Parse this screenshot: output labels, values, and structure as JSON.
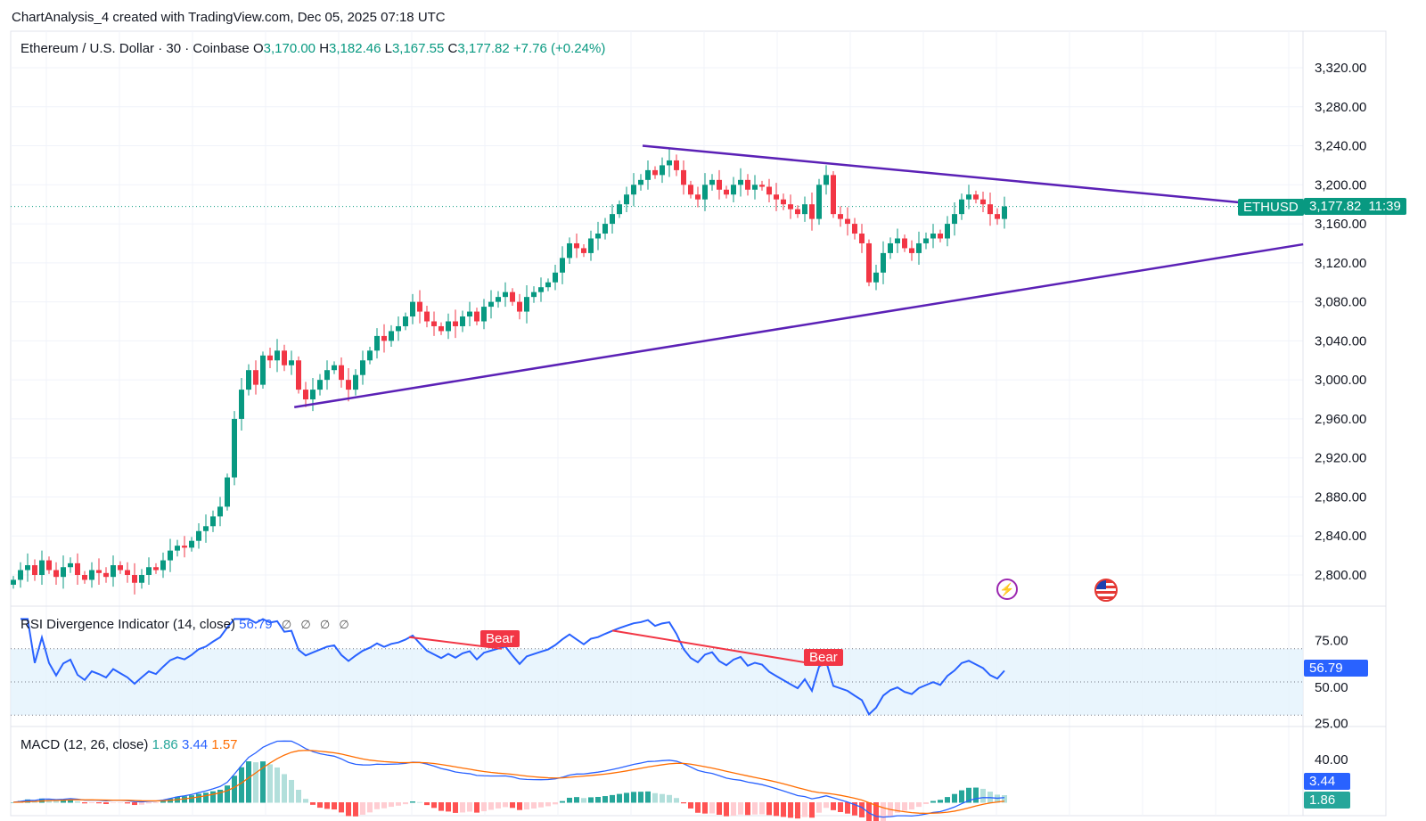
{
  "header": {
    "caption": "ChartAnalysis_4 created with TradingView.com, Dec 05, 2025 07:18 UTC"
  },
  "legend": {
    "symbol": "Ethereum / U.S. Dollar · 30 · Coinbase",
    "open_label": "O",
    "open": "3,170.00",
    "high_label": "H",
    "high": "3,182.46",
    "low_label": "L",
    "low": "3,167.55",
    "close_label": "C",
    "close": "3,177.82",
    "change": "+7.76 (+0.24%)"
  },
  "price_tag": {
    "ticker": "ETHUSD",
    "price": "3,177.82",
    "countdown": "11:39"
  },
  "rsi": {
    "title": "RSI Divergence Indicator (14, close)",
    "value": "56.79",
    "placeholders": [
      "∅",
      "∅",
      "∅",
      "∅"
    ],
    "axis": [
      "75.00",
      "50.00",
      "25.00"
    ],
    "labels": [
      "Bear",
      "Bear"
    ]
  },
  "macd": {
    "title": "MACD (12, 26, close)",
    "hist": "1.86",
    "macd": "3.44",
    "signal": "1.57",
    "axis": [
      "40.00"
    ]
  },
  "colors": {
    "up": "#089981",
    "down": "#f23645",
    "trendline": "#5b21b6",
    "rsi": "#2962ff",
    "bear": "#f23645",
    "macd": "#2962ff",
    "signal": "#ff6d00"
  },
  "icons": [
    "lightning-event-icon",
    "us-flag-event-icon"
  ],
  "chart_data": {
    "type": "candlestick",
    "title": "Ethereum / U.S. Dollar · 30 · Coinbase",
    "interval": "30",
    "ylim": [
      2780,
      3340
    ],
    "y_ticks": [
      "3,320.00",
      "3,280.00",
      "3,240.00",
      "3,200.00",
      "3,160.00",
      "3,120.00",
      "3,080.00",
      "3,040.00",
      "3,000.00",
      "2,960.00",
      "2,920.00",
      "2,880.00",
      "2,840.00",
      "2,800.00"
    ],
    "y_tick_values": [
      3320,
      3280,
      3240,
      3200,
      3160,
      3120,
      3080,
      3040,
      3000,
      2960,
      2920,
      2880,
      2840,
      2800
    ],
    "grid": true,
    "closes": [
      2795,
      2805,
      2810,
      2800,
      2815,
      2805,
      2798,
      2808,
      2812,
      2800,
      2795,
      2805,
      2802,
      2798,
      2810,
      2805,
      2800,
      2792,
      2800,
      2808,
      2805,
      2815,
      2825,
      2830,
      2828,
      2835,
      2845,
      2850,
      2860,
      2870,
      2900,
      2960,
      2990,
      3010,
      2995,
      3025,
      3020,
      3030,
      3015,
      3020,
      2990,
      2980,
      2990,
      3000,
      3010,
      3015,
      3000,
      2990,
      3005,
      3020,
      3030,
      3045,
      3040,
      3050,
      3055,
      3065,
      3080,
      3070,
      3060,
      3055,
      3050,
      3060,
      3055,
      3065,
      3070,
      3060,
      3075,
      3080,
      3085,
      3090,
      3080,
      3070,
      3085,
      3090,
      3095,
      3100,
      3110,
      3125,
      3140,
      3135,
      3130,
      3145,
      3150,
      3160,
      3170,
      3180,
      3190,
      3200,
      3205,
      3215,
      3210,
      3220,
      3225,
      3215,
      3200,
      3190,
      3185,
      3200,
      3205,
      3195,
      3190,
      3200,
      3205,
      3195,
      3200,
      3198,
      3190,
      3185,
      3180,
      3175,
      3170,
      3180,
      3165,
      3200,
      3210,
      3170,
      3165,
      3160,
      3150,
      3140,
      3100,
      3110,
      3130,
      3140,
      3145,
      3135,
      3130,
      3140,
      3145,
      3150,
      3145,
      3160,
      3170,
      3185,
      3190,
      3185,
      3180,
      3170,
      3165,
      3177.82
    ],
    "last_price": 3177.82,
    "trendlines": [
      {
        "from": [
          88.25,
          3240
        ],
        "to": [
          171.9,
          3182
        ]
      },
      {
        "from": [
          39.4,
          2972
        ],
        "to": [
          180.9,
          3139
        ]
      }
    ],
    "rsi_ylim": [
      25,
      75
    ],
    "rsi_band": [
      30,
      70
    ],
    "rsi_last": 56.79,
    "bear_divergences": [
      {
        "from": [
          55.5,
          77
        ],
        "to": [
          68.5,
          70
        ]
      },
      {
        "from": [
          84,
          81
        ],
        "to": [
          113.5,
          60
        ]
      }
    ]
  }
}
